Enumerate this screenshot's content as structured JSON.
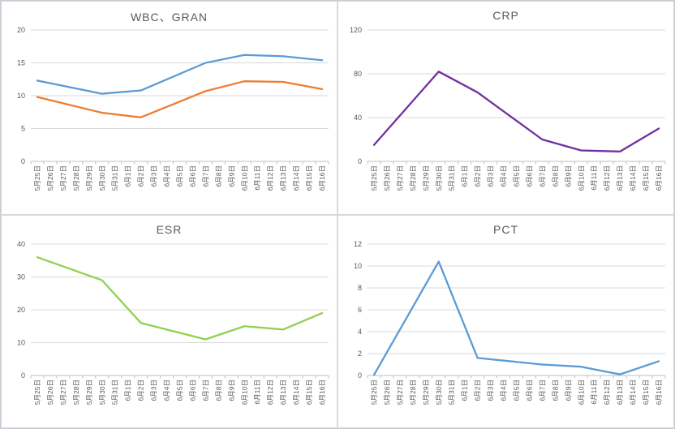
{
  "window": {
    "background": "#ffffff",
    "outer_border": "#c9ced4",
    "panel_border": "#d9d9d9",
    "grid_color": "#d9d9d9",
    "axis_line_color": "#bfbfbf",
    "title_color": "#595959",
    "tick_label_color": "#595959"
  },
  "chart_data": [
    {
      "type": "line",
      "title": "WBC、GRAN",
      "xlabel": "",
      "ylabel": "",
      "ylim": [
        0,
        20
      ],
      "ystep": 5,
      "grid": true,
      "legend": "none",
      "x_tick_rotation": -90,
      "categories": [
        "5月25日",
        "5月26日",
        "5月27日",
        "5月28日",
        "5月29日",
        "5月30日",
        "5月31日",
        "6月1日",
        "6月2日",
        "6月3日",
        "6月4日",
        "6月5日",
        "6月6日",
        "6月7日",
        "6月8日",
        "6月9日",
        "6月10日",
        "6月11日",
        "6月12日",
        "6月13日",
        "6月14日",
        "6月15日",
        "6月16日"
      ],
      "series": [
        {
          "name": "WBC",
          "color": "#5b9bd5",
          "x": [
            "5月25日",
            "5月30日",
            "6月2日",
            "6月7日",
            "6月10日",
            "6月13日",
            "6月16日"
          ],
          "values": [
            12.3,
            10.3,
            10.8,
            15.0,
            16.2,
            16.0,
            15.4
          ]
        },
        {
          "name": "GRAN",
          "color": "#ed7d31",
          "x": [
            "5月25日",
            "5月30日",
            "6月2日",
            "6月7日",
            "6月10日",
            "6月13日",
            "6月16日"
          ],
          "values": [
            9.8,
            7.4,
            6.7,
            10.7,
            12.2,
            12.1,
            11.0
          ]
        }
      ]
    },
    {
      "type": "line",
      "title": "CRP",
      "xlabel": "",
      "ylabel": "",
      "ylim": [
        0,
        120
      ],
      "ystep": 40,
      "grid": true,
      "legend": "none",
      "x_tick_rotation": -90,
      "categories": [
        "5月25日",
        "5月26日",
        "5月27日",
        "5月28日",
        "5月29日",
        "5月30日",
        "5月31日",
        "6月1日",
        "6月2日",
        "6月3日",
        "6月4日",
        "6月5日",
        "6月6日",
        "6月7日",
        "6月8日",
        "6月9日",
        "6月10日",
        "6月11日",
        "6月12日",
        "6月13日",
        "6月14日",
        "6月15日",
        "6月16日"
      ],
      "series": [
        {
          "name": "CRP",
          "color": "#7030a0",
          "x": [
            "5月25日",
            "5月30日",
            "6月2日",
            "6月7日",
            "6月10日",
            "6月13日",
            "6月16日"
          ],
          "values": [
            15,
            82,
            63,
            20,
            10,
            9,
            30
          ]
        }
      ]
    },
    {
      "type": "line",
      "title": "ESR",
      "xlabel": "",
      "ylabel": "",
      "ylim": [
        0,
        40
      ],
      "ystep": 10,
      "grid": true,
      "legend": "none",
      "x_tick_rotation": -90,
      "categories": [
        "5月25日",
        "5月26日",
        "5月27日",
        "5月28日",
        "5月29日",
        "5月30日",
        "5月31日",
        "6月1日",
        "6月2日",
        "6月3日",
        "6月4日",
        "6月5日",
        "6月6日",
        "6月7日",
        "6月8日",
        "6月9日",
        "6月10日",
        "6月11日",
        "6月12日",
        "6月13日",
        "6月14日",
        "6月15日",
        "6月16日"
      ],
      "series": [
        {
          "name": "ESR",
          "color": "#92d050",
          "x": [
            "5月25日",
            "5月30日",
            "6月2日",
            "6月7日",
            "6月10日",
            "6月13日",
            "6月16日"
          ],
          "values": [
            36,
            29,
            16,
            11,
            15,
            14,
            19
          ]
        }
      ]
    },
    {
      "type": "line",
      "title": "PCT",
      "xlabel": "",
      "ylabel": "",
      "ylim": [
        0,
        12
      ],
      "ystep": 2,
      "grid": true,
      "legend": "none",
      "x_tick_rotation": -90,
      "categories": [
        "5月25日",
        "5月26日",
        "5月27日",
        "5月28日",
        "5月29日",
        "5月30日",
        "5月31日",
        "6月1日",
        "6月2日",
        "6月3日",
        "6月4日",
        "6月5日",
        "6月6日",
        "6月7日",
        "6月8日",
        "6月9日",
        "6月10日",
        "6月11日",
        "6月12日",
        "6月13日",
        "6月14日",
        "6月15日",
        "6月16日"
      ],
      "series": [
        {
          "name": "PCT",
          "color": "#5b9bd5",
          "x": [
            "5月25日",
            "5月30日",
            "6月2日",
            "6月7日",
            "6月10日",
            "6月13日",
            "6月16日"
          ],
          "values": [
            0.05,
            10.4,
            1.6,
            1.0,
            0.8,
            0.1,
            1.3
          ]
        }
      ]
    }
  ]
}
